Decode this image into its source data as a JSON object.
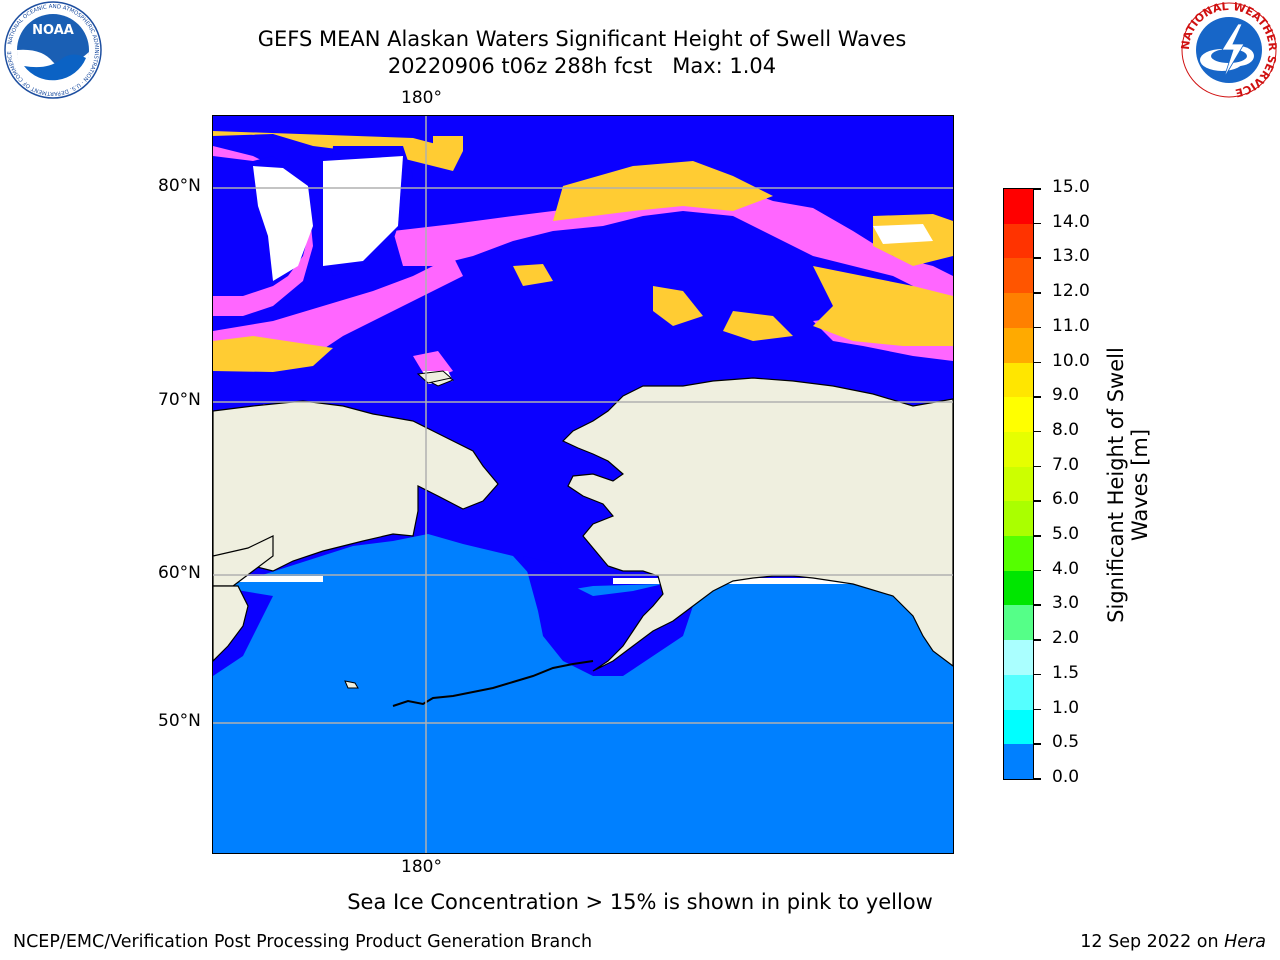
{
  "title": {
    "line1": "GEFS MEAN Alaskan Waters Significant Height of Swell Waves",
    "line2": "20220906 t06z 288h fcst   Max: 1.04"
  },
  "logos": {
    "left": {
      "icon": "noaa-logo-icon",
      "text": "NOAA",
      "ring_text": "NATIONAL OCEANIC AND ATMOSPHERIC ADMINISTRATION · U.S. DEPARTMENT OF COMMERCE"
    },
    "right": {
      "icon": "nws-logo-icon",
      "ring_text": "NATIONAL WEATHER SERVICE"
    }
  },
  "map": {
    "lon_labels": {
      "top": "180°",
      "bottom": "180°"
    },
    "lat_labels": [
      "80°N",
      "70°N",
      "60°N",
      "50°N"
    ],
    "colors": {
      "ocean_0_05": "#0b00ff",
      "ocean_05_10": "#0080ff",
      "land": "#efefdf",
      "ice_pink": "#ff66ff",
      "ice_yellow": "#ffcc33",
      "grid": "#b0b0b0"
    }
  },
  "colorbar": {
    "title_line1": "Significant Height of Swell",
    "title_line2": "Waves [m]",
    "labels": [
      "15.0",
      "14.0",
      "13.0",
      "12.0",
      "11.0",
      "10.0",
      "9.0",
      "8.0",
      "7.0",
      "6.0",
      "5.0",
      "4.0",
      "3.0",
      "2.0",
      "1.5",
      "1.0",
      "0.5",
      "0.0"
    ],
    "colors": [
      "#ff0000",
      "#ff3300",
      "#ff5500",
      "#ff8000",
      "#ffaa00",
      "#ffe600",
      "#ffff00",
      "#e6ff00",
      "#ccff00",
      "#aaff00",
      "#55ff00",
      "#00e600",
      "#55ff88",
      "#aaffff",
      "#55ffff",
      "#00ffff",
      "#0080ff",
      "#0b00ff"
    ]
  },
  "footnote": "Sea Ice Concentration > 15% is shown in pink to yellow",
  "footer": {
    "left": "NCEP/EMC/Verification Post Processing Product Generation Branch",
    "right_date": "12 Sep 2022 on ",
    "right_host": "Hera"
  }
}
